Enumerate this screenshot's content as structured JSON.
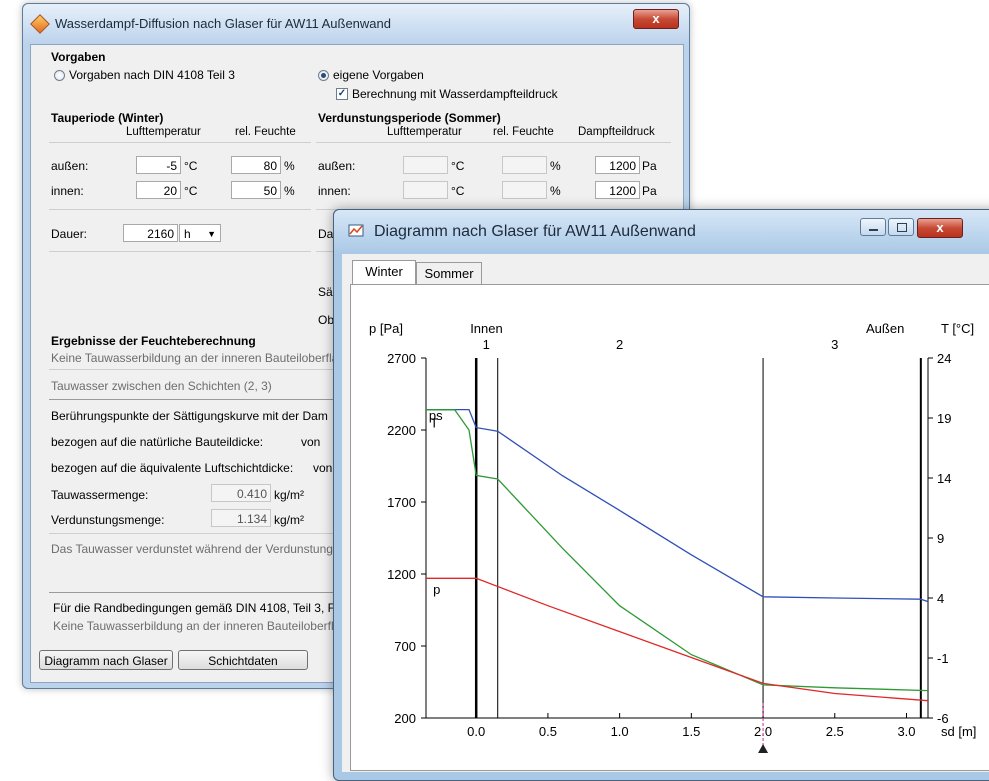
{
  "main_window": {
    "title": "Wasserdampf-Diffusion nach Glaser für AW11 Außenwand",
    "close_label": "x",
    "vorgaben": {
      "title": "Vorgaben",
      "option_din": "Vorgaben nach DIN 4108 Teil 3",
      "option_eigene": "eigene Vorgaben",
      "check_label": "Berechnung mit Wasserdampfteildruck"
    },
    "winter": {
      "title": "Tauperiode (Winter)",
      "col_temp": "Lufttemperatur",
      "col_hum": "rel. Feuchte",
      "rows": [
        {
          "label": "außen:",
          "temp": "-5",
          "temp_unit": "°C",
          "hum": "80",
          "hum_unit": "%"
        },
        {
          "label": "innen:",
          "temp": "20",
          "temp_unit": "°C",
          "hum": "50",
          "hum_unit": "%"
        }
      ],
      "dauer_label": "Dauer:",
      "dauer_value": "2160",
      "dauer_unit": "h"
    },
    "sommer": {
      "title": "Verdunstungsperiode (Sommer)",
      "col_temp": "Lufttemperatur",
      "col_hum": "rel. Feuchte",
      "col_dampf": "Dampfteildruck",
      "rows": [
        {
          "label": "außen:",
          "temp_unit": "°C",
          "hum_unit": "%",
          "dampf": "1200",
          "dampf_unit": "Pa"
        },
        {
          "label": "innen:",
          "temp_unit": "°C",
          "hum_unit": "%",
          "dampf": "1200",
          "dampf_unit": "Pa"
        }
      ],
      "dauer_partial": "Da",
      "label_sa": "Sä",
      "label_ob": "Ob"
    },
    "ergebnisse": {
      "title": "Ergebnisse der Feuchteberechnung",
      "line1": "Keine Tauwasserbildung an der inneren Bauteiloberflä",
      "line2": "Tauwasser zwischen den Schichten (2, 3)",
      "line3": "Berührungspunkte der Sättigungskurve mit der Dam",
      "line4": "bezogen auf die natürliche Bauteildicke:",
      "line4_von": "von",
      "line5": "bezogen auf die äquivalente Luftschichtdicke:",
      "line5_von": "von",
      "tauwasser_label": "Tauwassermenge:",
      "tauwasser_value": "0.410",
      "tauwasser_unit": "kg/m²",
      "verdunstung_label": "Verdunstungsmenge:",
      "verdunstung_value": "1.134",
      "verdunstung_unit": "kg/m²",
      "line_verdunstet": "Das Tauwasser verdunstet während der Verdunstung",
      "din_line": "Für die Randbedingungen gemäß DIN 4108, Teil 3, F",
      "din_line2": "Keine Tauwasserbildung an der inneren Bauteiloberfl"
    },
    "buttons": {
      "diagramm": "Diagramm nach Glaser",
      "schichtdaten": "Schichtdaten"
    }
  },
  "diagram_window": {
    "title": "Diagramm nach Glaser für AW11 Außenwand",
    "close_label": "x",
    "tabs": [
      {
        "label": "Winter",
        "selected": true
      },
      {
        "label": "Sommer",
        "selected": false
      }
    ]
  },
  "chart_data": {
    "type": "line",
    "title": "",
    "xlabel": "sd [m]",
    "ylabel": "p [Pa]",
    "y2label": "T [°C]",
    "xlim": [
      -0.35,
      3.15
    ],
    "ylim": [
      200,
      2700
    ],
    "y2lim": [
      -6,
      24
    ],
    "x_ticks": [
      {
        "value": 0.0,
        "label": "0.0"
      },
      {
        "value": 0.5,
        "label": "0.5"
      },
      {
        "value": 1.0,
        "label": "1.0"
      },
      {
        "value": 1.5,
        "label": "1.5"
      },
      {
        "value": 2.0,
        "label": "2.0"
      },
      {
        "value": 2.5,
        "label": "2.5"
      },
      {
        "value": 3.0,
        "label": "3.0"
      }
    ],
    "y_ticks": [
      {
        "value": 2700,
        "label": "2700"
      },
      {
        "value": 2200,
        "label": "2200"
      },
      {
        "value": 1700,
        "label": "1700"
      },
      {
        "value": 1200,
        "label": "1200"
      },
      {
        "value": 700,
        "label": "700"
      },
      {
        "value": 200,
        "label": "200"
      }
    ],
    "y2_ticks": [
      {
        "value": 24,
        "label": "24"
      },
      {
        "value": 19,
        "label": "19"
      },
      {
        "value": 14,
        "label": "14"
      },
      {
        "value": 9,
        "label": "9"
      },
      {
        "value": 4,
        "label": "4"
      },
      {
        "value": -1,
        "label": "-1"
      },
      {
        "value": -6,
        "label": "-6"
      }
    ],
    "region_labels": {
      "innen": "Innen",
      "aussen": "Außen"
    },
    "layers": [
      {
        "label": "1",
        "x_center": 0.07
      },
      {
        "label": "2",
        "x_center": 1.0
      },
      {
        "label": "3",
        "x_center": 2.5
      }
    ],
    "boundaries": [
      0.0,
      0.15,
      2.0,
      3.1
    ],
    "marker_x": 2.0,
    "series": [
      {
        "name": "T",
        "color": "#3050b8",
        "axis": "right",
        "x": [
          -0.35,
          -0.05,
          0.0,
          0.15,
          0.6,
          1.0,
          1.5,
          2.0,
          2.5,
          3.1,
          3.15
        ],
        "y": [
          19.7,
          19.7,
          18.2,
          17.9,
          14.2,
          11.3,
          7.6,
          4.1,
          4.0,
          3.9,
          3.7
        ]
      },
      {
        "name": "ps",
        "color": "#2e9a34",
        "axis": "left",
        "x": [
          -0.35,
          -0.15,
          -0.05,
          0.0,
          0.15,
          0.3,
          0.6,
          1.0,
          1.5,
          2.0,
          2.5,
          3.15
        ],
        "y": [
          2340,
          2340,
          2200,
          1885,
          1860,
          1700,
          1380,
          980,
          640,
          430,
          410,
          390
        ]
      },
      {
        "name": "p",
        "color": "#e02828",
        "axis": "left",
        "x": [
          -0.35,
          0.0,
          0.5,
          1.0,
          1.5,
          2.0,
          2.5,
          3.15
        ],
        "y": [
          1170,
          1170,
          980,
          800,
          620,
          440,
          370,
          320
        ]
      }
    ]
  }
}
